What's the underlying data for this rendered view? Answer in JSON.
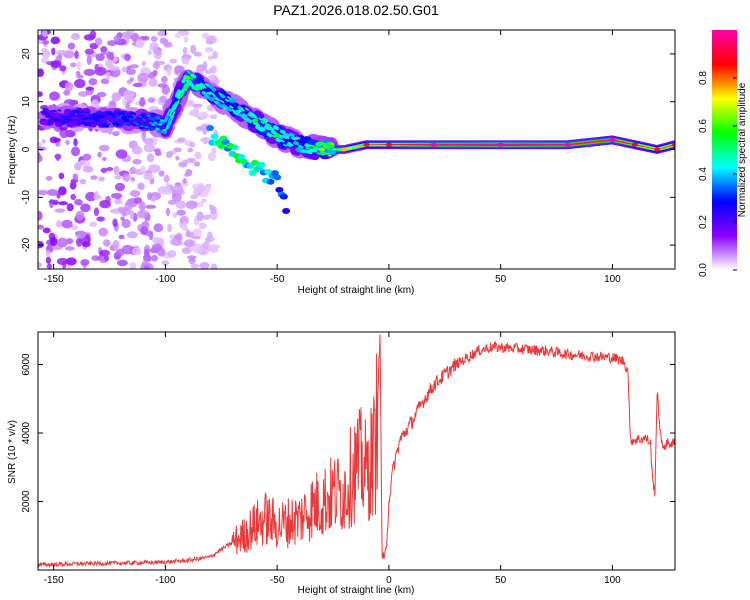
{
  "title": "PAZ1.2026.018.02.50.G01",
  "colors": {
    "snr_line": "#e8383a",
    "axis": "#000000",
    "background": "#ffffff"
  },
  "chart_data": [
    {
      "type": "heatmap",
      "name": "spectrogram",
      "xlabel": "Height of straight line (km)",
      "ylabel": "Frequency (Hz)",
      "xlim": [
        -157,
        128
      ],
      "ylim": [
        -25,
        25
      ],
      "xticks": [
        -150,
        -100,
        -50,
        0,
        50,
        100
      ],
      "yticks": [
        -20,
        -10,
        0,
        10,
        20
      ],
      "colorbar": {
        "label": "Normalized spectral amplitude",
        "range": [
          0,
          1
        ],
        "ticks": [
          0.0,
          0.2,
          0.4,
          0.6,
          0.8
        ],
        "tick_labels": [
          "0.0",
          "0.2",
          "0.4",
          "0.6",
          "0.8"
        ],
        "stops": [
          "#ffffff",
          "#8b00ff",
          "#0000ff",
          "#00ffff",
          "#00ff00",
          "#ffff00",
          "#ff0000",
          "#ff00aa"
        ]
      },
      "ridge": [
        {
          "x": -155,
          "f": 7,
          "a": 0.25
        },
        {
          "x": -110,
          "f": 6,
          "a": 0.35
        },
        {
          "x": -100,
          "f": 5,
          "a": 0.45
        },
        {
          "x": -90,
          "f": 15,
          "a": 0.55
        },
        {
          "x": -80,
          "f": 12,
          "a": 0.45
        },
        {
          "x": -70,
          "f": 9,
          "a": 0.45
        },
        {
          "x": -60,
          "f": 6,
          "a": 0.5
        },
        {
          "x": -50,
          "f": 3,
          "a": 0.5
        },
        {
          "x": -40,
          "f": 1,
          "a": 0.45
        },
        {
          "x": -30,
          "f": 0,
          "a": 0.6
        },
        {
          "x": -20,
          "f": 0,
          "a": 0.7
        },
        {
          "x": -10,
          "f": 1,
          "a": 0.8
        },
        {
          "x": 0,
          "f": 1,
          "a": 0.85
        },
        {
          "x": 20,
          "f": 1,
          "a": 0.95
        },
        {
          "x": 50,
          "f": 1,
          "a": 1.0
        },
        {
          "x": 80,
          "f": 1,
          "a": 0.95
        },
        {
          "x": 100,
          "f": 2,
          "a": 0.95
        },
        {
          "x": 110,
          "f": 1,
          "a": 0.85
        },
        {
          "x": 120,
          "f": 0,
          "a": 0.8
        },
        {
          "x": 128,
          "f": 1,
          "a": 0.85
        }
      ],
      "secondary_branch": [
        {
          "x": -80,
          "f": 3,
          "a": 0.45
        },
        {
          "x": -70,
          "f": 0,
          "a": 0.5
        },
        {
          "x": -60,
          "f": -4,
          "a": 0.45
        },
        {
          "x": -50,
          "f": -6,
          "a": 0.35
        },
        {
          "x": -45,
          "f": -13,
          "a": 0.25
        }
      ]
    },
    {
      "type": "line",
      "name": "snr",
      "xlabel": "Height of straight line (km)",
      "ylabel": "SNR (10 * v/v)",
      "xlim": [
        -157,
        128
      ],
      "ylim": [
        0,
        6950
      ],
      "xticks": [
        -150,
        -100,
        -50,
        0,
        50,
        100
      ],
      "yticks": [
        2000,
        4000,
        6000
      ],
      "series": [
        {
          "name": "SNR",
          "x": [
            -157,
            -140,
            -120,
            -100,
            -90,
            -80,
            -75,
            -70,
            -65,
            -60,
            -55,
            -50,
            -45,
            -40,
            -35,
            -30,
            -25,
            -20,
            -18,
            -15,
            -12,
            -10,
            -8,
            -6,
            -4,
            -3,
            -2,
            -1,
            0,
            2,
            5,
            10,
            15,
            20,
            25,
            30,
            35,
            40,
            45,
            50,
            60,
            70,
            80,
            90,
            100,
            105,
            107,
            108,
            110,
            115,
            117,
            118,
            119,
            120,
            122,
            125,
            128
          ],
          "y": [
            150,
            180,
            200,
            230,
            280,
            380,
            600,
            800,
            1000,
            1300,
            1500,
            1300,
            1400,
            1500,
            1800,
            2000,
            2200,
            2300,
            2600,
            3000,
            3100,
            2800,
            3200,
            3500,
            6800,
            400,
            200,
            900,
            2000,
            3000,
            3800,
            4300,
            4900,
            5400,
            5700,
            6000,
            6200,
            6400,
            6500,
            6500,
            6450,
            6400,
            6300,
            6250,
            6200,
            6100,
            5800,
            3800,
            3800,
            3850,
            3700,
            2600,
            2300,
            5200,
            3600,
            3700,
            3700
          ]
        }
      ]
    }
  ]
}
